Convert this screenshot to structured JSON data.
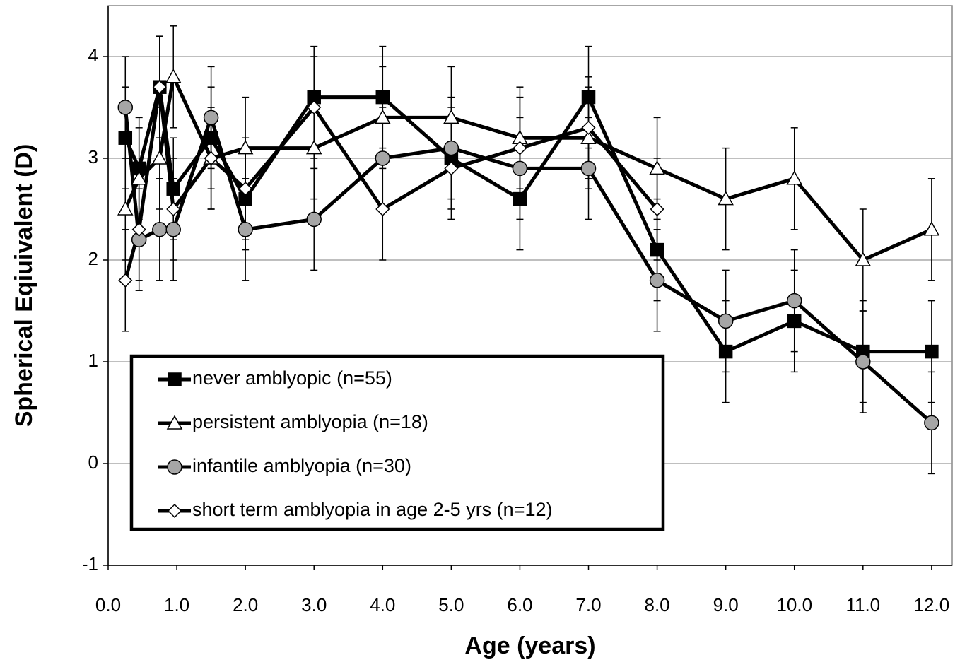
{
  "chart_data": {
    "type": "line",
    "xlabel": "Age (years)",
    "ylabel": "Spherical Eqiuivalent (D)",
    "xlim": [
      0,
      12.3
    ],
    "ylim": [
      -1,
      4.5
    ],
    "xticks": [
      {
        "value": 0,
        "label": "0.0"
      },
      {
        "value": 1,
        "label": "1.0"
      },
      {
        "value": 2,
        "label": "2.0"
      },
      {
        "value": 3,
        "label": "3.0"
      },
      {
        "value": 4,
        "label": "4.0"
      },
      {
        "value": 5,
        "label": "5.0"
      },
      {
        "value": 6,
        "label": "6.0"
      },
      {
        "value": 7,
        "label": "7.0"
      },
      {
        "value": 8,
        "label": "8.0"
      },
      {
        "value": 9,
        "label": "9.0"
      },
      {
        "value": 10,
        "label": "10.0"
      },
      {
        "value": 11,
        "label": "11.0"
      },
      {
        "value": 12,
        "label": "12.0"
      }
    ],
    "yticks": [
      -1,
      0,
      1,
      2,
      3,
      4
    ],
    "grid": true,
    "legend": "lower left",
    "series": [
      {
        "name": "never amblyopic (n=55)",
        "color": "#000000",
        "marker": "square",
        "marker_fill": "#000000",
        "x": [
          0.25,
          0.45,
          0.75,
          0.95,
          1.5,
          2,
          3,
          4,
          5,
          6,
          7,
          8,
          9,
          10,
          11,
          12
        ],
        "values": [
          3.2,
          2.9,
          3.7,
          2.7,
          3.2,
          2.6,
          3.6,
          3.6,
          3.0,
          2.6,
          3.6,
          2.1,
          1.1,
          1.4,
          1.1,
          1.1
        ],
        "errors": [
          0.5,
          0.5,
          0.5,
          0.5,
          0.5,
          0.5,
          0.5,
          0.5,
          0.5,
          0.5,
          0.5,
          0.5,
          0.5,
          0.5,
          0.5,
          0.5
        ]
      },
      {
        "name": "persistent amblyopia (n=18)",
        "color": "#000000",
        "marker": "triangle",
        "marker_fill": "#ffffff",
        "x": [
          0.25,
          0.45,
          0.75,
          0.95,
          1.5,
          2,
          3,
          4,
          5,
          6,
          7,
          8,
          9,
          10,
          11,
          12
        ],
        "values": [
          2.5,
          2.8,
          3.0,
          3.8,
          3.0,
          3.1,
          3.1,
          3.4,
          3.4,
          3.2,
          3.2,
          2.9,
          2.6,
          2.8,
          2.0,
          2.3
        ],
        "errors": [
          0.5,
          0.5,
          0.5,
          0.5,
          0.5,
          0.5,
          0.5,
          0.5,
          0.5,
          0.5,
          0.5,
          0.5,
          0.5,
          0.5,
          0.5,
          0.5
        ]
      },
      {
        "name": "infantile amblyopia (n=30)",
        "color": "#000000",
        "marker": "circle",
        "marker_fill": "#a6a6a6",
        "x": [
          0.25,
          0.45,
          0.75,
          0.95,
          1.5,
          2,
          3,
          4,
          5,
          6,
          7,
          8,
          9,
          10,
          11,
          12
        ],
        "values": [
          3.5,
          2.2,
          2.3,
          2.3,
          3.4,
          2.3,
          2.4,
          3.0,
          3.1,
          2.9,
          2.9,
          1.8,
          1.4,
          1.6,
          1.0,
          0.4
        ],
        "errors": [
          0.5,
          0.5,
          0.5,
          0.5,
          0.5,
          0.5,
          0.5,
          0.5,
          0.5,
          0.5,
          0.5,
          0.5,
          0.5,
          0.5,
          0.5,
          0.5
        ]
      },
      {
        "name": "short term amblyopia in age 2-5 yrs (n=12)",
        "color": "#000000",
        "marker": "diamond",
        "marker_fill": "#ffffff",
        "x": [
          0.25,
          0.45,
          0.75,
          0.95,
          1.5,
          2,
          3,
          4,
          5,
          6,
          7,
          8
        ],
        "values": [
          1.8,
          2.3,
          3.7,
          2.5,
          3.0,
          2.7,
          3.5,
          2.5,
          2.9,
          3.1,
          3.3,
          2.5
        ],
        "errors": [
          0.5,
          0.5,
          0.5,
          0.5,
          0.5,
          0.5,
          0.5,
          0.5,
          0.5,
          0.5,
          0.5,
          0.5
        ]
      }
    ]
  }
}
